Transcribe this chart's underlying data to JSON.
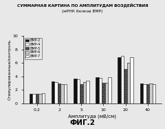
{
  "title_line1": "СУММАРНАЯ КАРТИНА ПО АМПЛИТУДАМ ВОЗДЕЙСТВИЯ",
  "title_line2": "(мРНК белков ВМР)",
  "xlabel": "Амплитуда (мВ/см)",
  "ylabel": "Стимулированные/контроль",
  "figcaption": "ФИГ.2",
  "x_labels": [
    "0.2",
    "2",
    "5",
    "10",
    "20",
    "40"
  ],
  "legend_labels": [
    "BMP-2",
    "BMP-4",
    "BMP-5",
    "BMP-6",
    "BMP-7"
  ],
  "bar_colors": [
    "#111111",
    "#ffffff",
    "#555555",
    "#cccccc",
    "#ffffff"
  ],
  "bar_hatches": [
    "",
    "",
    ".....",
    "",
    ""
  ],
  "bar_edgecolors": [
    "#111111",
    "#333333",
    "#333333",
    "#333333",
    "#333333"
  ],
  "ylim": [
    0,
    10
  ],
  "yticks": [
    0,
    2,
    4,
    6,
    8,
    10
  ],
  "data": {
    "BMP-2": [
      1.4,
      3.2,
      3.7,
      3.9,
      6.8,
      2.9
    ],
    "BMP-4": [
      1.4,
      3.1,
      3.6,
      3.8,
      7.1,
      2.85
    ],
    "BMP-5": [
      1.35,
      2.9,
      2.85,
      3.0,
      5.1,
      2.8
    ],
    "BMP-6": [
      1.35,
      2.85,
      3.1,
      3.0,
      6.0,
      2.9
    ],
    "BMP-7": [
      1.5,
      2.8,
      3.4,
      3.9,
      6.8,
      2.8
    ]
  }
}
